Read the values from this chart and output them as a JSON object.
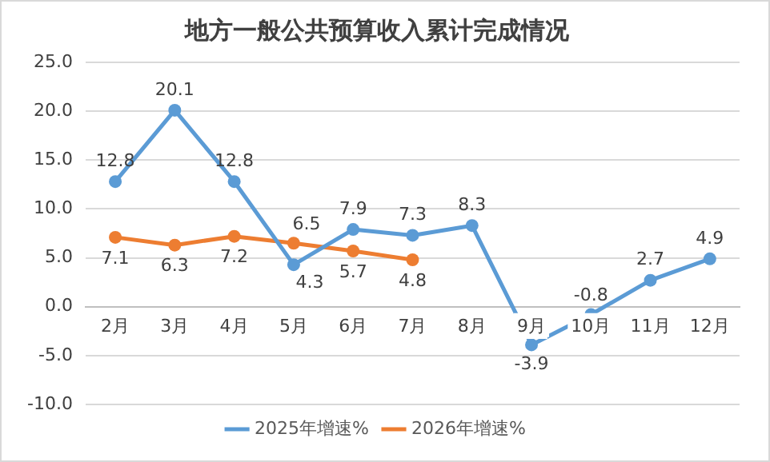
{
  "chart_data": {
    "type": "line",
    "title": "地方一般公共预算收入累计完成情况",
    "categories": [
      "2月",
      "3月",
      "4月",
      "5月",
      "6月",
      "7月",
      "8月",
      "9月",
      "10月",
      "11月",
      "12月"
    ],
    "series": [
      {
        "name": "2025年增速%",
        "color": "#5b9bd5",
        "values": [
          12.8,
          20.1,
          12.8,
          4.3,
          7.9,
          7.3,
          8.3,
          -3.9,
          -0.8,
          2.7,
          4.9
        ]
      },
      {
        "name": "2026年增速%",
        "color": "#ed7d31",
        "values": [
          7.1,
          6.3,
          7.2,
          6.5,
          5.7,
          4.8,
          null,
          null,
          null,
          null,
          null
        ]
      }
    ],
    "ylim": [
      -10,
      25
    ],
    "yticks": [
      {
        "value": -10,
        "label": "-10.0"
      },
      {
        "value": -5,
        "label": "-5.0"
      },
      {
        "value": 0,
        "label": "0.0"
      },
      {
        "value": 5,
        "label": "5.0"
      },
      {
        "value": 10,
        "label": "10.0"
      },
      {
        "value": 15,
        "label": "15.0"
      },
      {
        "value": 20,
        "label": "20.0"
      },
      {
        "value": 25,
        "label": "25.0"
      }
    ],
    "grid": "y",
    "legend": "bottom",
    "marker": "circle",
    "line_style": "solid",
    "data_labels": true
  }
}
